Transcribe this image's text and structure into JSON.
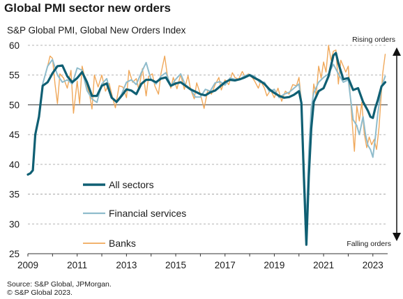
{
  "title": "Global PMI sector new orders",
  "subtitle": "S&P Global PMI, Global New Orders Index",
  "source_line1": "Source: S&P Global, JPMorgan.",
  "source_line2": "© S&P Global 2023.",
  "colors": {
    "all_sectors": "#0f5f73",
    "financial_services": "#8fbccc",
    "banks": "#f0a85a",
    "axis": "#333333",
    "grid": "#9a9a9a"
  },
  "chart_data": {
    "type": "line",
    "ylim": [
      25,
      60
    ],
    "xlim": [
      2009.0,
      2023.6
    ],
    "yticks": [
      25,
      30,
      35,
      40,
      45,
      50,
      55,
      60
    ],
    "xticks": [
      2009,
      2011,
      2013,
      2015,
      2017,
      2019,
      2021,
      2023
    ],
    "grid": "horizontal dashed",
    "legend_placement": "left-center",
    "annotations": {
      "top": "Rising orders",
      "bottom": "Falling orders"
    },
    "series": [
      {
        "name": "All sectors",
        "points": [
          [
            2009.0,
            38.3
          ],
          [
            2009.1,
            38.5
          ],
          [
            2009.2,
            39
          ],
          [
            2009.3,
            45
          ],
          [
            2009.45,
            48
          ],
          [
            2009.6,
            53.2
          ],
          [
            2009.8,
            53.8
          ],
          [
            2010.0,
            55.3
          ],
          [
            2010.2,
            56.5
          ],
          [
            2010.4,
            56.6
          ],
          [
            2010.6,
            54.8
          ],
          [
            2010.8,
            53.8
          ],
          [
            2011.0,
            54.5
          ],
          [
            2011.2,
            55.5
          ],
          [
            2011.4,
            53.8
          ],
          [
            2011.6,
            51.5
          ],
          [
            2011.8,
            51.5
          ],
          [
            2012.0,
            53.2
          ],
          [
            2012.2,
            53.6
          ],
          [
            2012.4,
            51.2
          ],
          [
            2012.6,
            50.5
          ],
          [
            2012.8,
            51.5
          ],
          [
            2013.0,
            52.6
          ],
          [
            2013.2,
            52.4
          ],
          [
            2013.4,
            51.8
          ],
          [
            2013.6,
            53.5
          ],
          [
            2013.8,
            54.2
          ],
          [
            2014.0,
            54.2
          ],
          [
            2014.2,
            53.8
          ],
          [
            2014.4,
            54.4
          ],
          [
            2014.6,
            54.6
          ],
          [
            2014.8,
            53.2
          ],
          [
            2015.0,
            53.6
          ],
          [
            2015.2,
            53.8
          ],
          [
            2015.4,
            53.2
          ],
          [
            2015.6,
            52.6
          ],
          [
            2015.8,
            52.2
          ],
          [
            2016.0,
            51.8
          ],
          [
            2016.2,
            51.6
          ],
          [
            2016.4,
            52.1
          ],
          [
            2016.6,
            52.4
          ],
          [
            2016.8,
            53.1
          ],
          [
            2017.0,
            53.8
          ],
          [
            2017.2,
            54.2
          ],
          [
            2017.4,
            54.1
          ],
          [
            2017.6,
            54.3
          ],
          [
            2017.8,
            54.6
          ],
          [
            2018.0,
            55.0
          ],
          [
            2018.2,
            54.5
          ],
          [
            2018.4,
            54.1
          ],
          [
            2018.6,
            53.5
          ],
          [
            2018.8,
            52.6
          ],
          [
            2019.0,
            52.0
          ],
          [
            2019.2,
            51.5
          ],
          [
            2019.4,
            51.2
          ],
          [
            2019.6,
            51.3
          ],
          [
            2019.8,
            51.7
          ],
          [
            2020.0,
            52.3
          ],
          [
            2020.1,
            50.3
          ],
          [
            2020.2,
            38
          ],
          [
            2020.3,
            26.5
          ],
          [
            2020.4,
            38
          ],
          [
            2020.5,
            46
          ],
          [
            2020.6,
            50.5
          ],
          [
            2020.8,
            52.3
          ],
          [
            2021.0,
            52.8
          ],
          [
            2021.2,
            54.8
          ],
          [
            2021.4,
            58.3
          ],
          [
            2021.5,
            58.7
          ],
          [
            2021.6,
            57
          ],
          [
            2021.8,
            54.3
          ],
          [
            2022.0,
            54.5
          ],
          [
            2022.2,
            52.5
          ],
          [
            2022.4,
            52.8
          ],
          [
            2022.6,
            50.5
          ],
          [
            2022.8,
            49
          ],
          [
            2022.9,
            48
          ],
          [
            2023.0,
            47.8
          ],
          [
            2023.1,
            49.5
          ],
          [
            2023.2,
            50.8
          ],
          [
            2023.35,
            53.1
          ],
          [
            2023.5,
            53.8
          ]
        ]
      },
      {
        "name": "Financial services",
        "points": [
          [
            2009.0,
            38.3
          ],
          [
            2009.1,
            38.5
          ],
          [
            2009.2,
            39
          ],
          [
            2009.3,
            45
          ],
          [
            2009.45,
            48
          ],
          [
            2009.6,
            53.5
          ],
          [
            2009.8,
            56.5
          ],
          [
            2010.0,
            57.6
          ],
          [
            2010.2,
            55
          ],
          [
            2010.4,
            53.8
          ],
          [
            2010.6,
            54.2
          ],
          [
            2010.8,
            53.5
          ],
          [
            2011.0,
            56.2
          ],
          [
            2011.2,
            55.8
          ],
          [
            2011.4,
            52.4
          ],
          [
            2011.6,
            51
          ],
          [
            2011.8,
            50.4
          ],
          [
            2012.0,
            53.5
          ],
          [
            2012.2,
            54.4
          ],
          [
            2012.4,
            51.2
          ],
          [
            2012.6,
            50.4
          ],
          [
            2012.8,
            51.8
          ],
          [
            2013.0,
            53.8
          ],
          [
            2013.2,
            54.2
          ],
          [
            2013.4,
            53.4
          ],
          [
            2013.6,
            55.4
          ],
          [
            2013.8,
            57.1
          ],
          [
            2014.0,
            54.2
          ],
          [
            2014.2,
            53.5
          ],
          [
            2014.4,
            54.8
          ],
          [
            2014.6,
            55.4
          ],
          [
            2014.8,
            53.2
          ],
          [
            2015.0,
            54.3
          ],
          [
            2015.2,
            55.2
          ],
          [
            2015.4,
            53.2
          ],
          [
            2015.6,
            52.6
          ],
          [
            2015.8,
            51.3
          ],
          [
            2016.0,
            51.3
          ],
          [
            2016.2,
            52.6
          ],
          [
            2016.4,
            52.3
          ],
          [
            2016.6,
            53.7
          ],
          [
            2016.8,
            53.9
          ],
          [
            2017.0,
            53.3
          ],
          [
            2017.2,
            54.5
          ],
          [
            2017.4,
            54.3
          ],
          [
            2017.6,
            54.2
          ],
          [
            2017.8,
            54.9
          ],
          [
            2018.0,
            55.1
          ],
          [
            2018.2,
            54.8
          ],
          [
            2018.4,
            53.8
          ],
          [
            2018.6,
            53.8
          ],
          [
            2018.8,
            52.2
          ],
          [
            2019.0,
            52.6
          ],
          [
            2019.2,
            51.2
          ],
          [
            2019.4,
            51.8
          ],
          [
            2019.6,
            52.1
          ],
          [
            2019.8,
            52.8
          ],
          [
            2020.0,
            53.5
          ],
          [
            2020.1,
            50.5
          ],
          [
            2020.2,
            40
          ],
          [
            2020.3,
            30
          ],
          [
            2020.4,
            42
          ],
          [
            2020.5,
            49.5
          ],
          [
            2020.6,
            52
          ],
          [
            2020.8,
            53.8
          ],
          [
            2021.0,
            54.6
          ],
          [
            2021.2,
            55.2
          ],
          [
            2021.4,
            56.8
          ],
          [
            2021.5,
            56
          ],
          [
            2021.6,
            55.2
          ],
          [
            2021.8,
            53.8
          ],
          [
            2022.0,
            54.2
          ],
          [
            2022.2,
            47.5
          ],
          [
            2022.35,
            46.5
          ],
          [
            2022.45,
            45
          ],
          [
            2022.6,
            48
          ],
          [
            2022.7,
            45
          ],
          [
            2022.8,
            43.2
          ],
          [
            2022.9,
            42.5
          ],
          [
            2023.0,
            41.2
          ],
          [
            2023.1,
            44.5
          ],
          [
            2023.2,
            48.6
          ],
          [
            2023.35,
            53.1
          ],
          [
            2023.5,
            54.8
          ]
        ]
      },
      {
        "name": "Banks",
        "points": [
          [
            2009.8,
            56.5
          ],
          [
            2009.9,
            58.2
          ],
          [
            2010.0,
            57.8
          ],
          [
            2010.1,
            53.5
          ],
          [
            2010.2,
            50.2
          ],
          [
            2010.3,
            55.2
          ],
          [
            2010.45,
            54.5
          ],
          [
            2010.6,
            52.8
          ],
          [
            2010.75,
            55.8
          ],
          [
            2010.85,
            48.6
          ],
          [
            2011.0,
            54
          ],
          [
            2011.1,
            50.2
          ],
          [
            2011.2,
            56.5
          ],
          [
            2011.35,
            53.8
          ],
          [
            2011.5,
            51.8
          ],
          [
            2011.6,
            49.3
          ],
          [
            2011.7,
            55
          ],
          [
            2011.85,
            53
          ],
          [
            2012.0,
            55
          ],
          [
            2012.15,
            52.3
          ],
          [
            2012.3,
            53.6
          ],
          [
            2012.45,
            51
          ],
          [
            2012.55,
            49.5
          ],
          [
            2012.7,
            53.2
          ],
          [
            2012.85,
            53
          ],
          [
            2013.0,
            51.2
          ],
          [
            2013.1,
            55.8
          ],
          [
            2013.25,
            53.8
          ],
          [
            2013.4,
            54.4
          ],
          [
            2013.5,
            52.6
          ],
          [
            2013.65,
            56.1
          ],
          [
            2013.8,
            51.5
          ],
          [
            2013.9,
            54.8
          ],
          [
            2014.05,
            55.2
          ],
          [
            2014.15,
            53.2
          ],
          [
            2014.3,
            51.8
          ],
          [
            2014.4,
            55.2
          ],
          [
            2014.55,
            58.2
          ],
          [
            2014.65,
            55.2
          ],
          [
            2014.8,
            52.8
          ],
          [
            2014.9,
            54.6
          ],
          [
            2015.05,
            52.7
          ],
          [
            2015.2,
            55.1
          ],
          [
            2015.35,
            52.6
          ],
          [
            2015.5,
            54.9
          ],
          [
            2015.6,
            52.6
          ],
          [
            2015.75,
            51
          ],
          [
            2015.85,
            53.7
          ],
          [
            2016.0,
            51.8
          ],
          [
            2016.15,
            49.4
          ],
          [
            2016.3,
            52.5
          ],
          [
            2016.45,
            51.8
          ],
          [
            2016.6,
            53.4
          ],
          [
            2016.75,
            54.6
          ],
          [
            2016.85,
            52.5
          ],
          [
            2017.0,
            54.2
          ],
          [
            2017.15,
            53.4
          ],
          [
            2017.3,
            55.4
          ],
          [
            2017.4,
            54.6
          ],
          [
            2017.55,
            54.3
          ],
          [
            2017.7,
            55.6
          ],
          [
            2017.8,
            54.8
          ],
          [
            2017.95,
            55.2
          ],
          [
            2018.1,
            54.6
          ],
          [
            2018.2,
            54
          ],
          [
            2018.35,
            52.8
          ],
          [
            2018.45,
            54
          ],
          [
            2018.6,
            52.8
          ],
          [
            2018.7,
            51.5
          ],
          [
            2018.85,
            52.5
          ],
          [
            2019.0,
            51.2
          ],
          [
            2019.15,
            52.8
          ],
          [
            2019.3,
            50.6
          ],
          [
            2019.45,
            52.3
          ],
          [
            2019.6,
            51.8
          ],
          [
            2019.75,
            53.4
          ],
          [
            2019.9,
            53.2
          ],
          [
            2020.0,
            54.6
          ],
          [
            2020.1,
            50.8
          ],
          [
            2020.2,
            41
          ],
          [
            2020.3,
            27.5
          ],
          [
            2020.4,
            40
          ],
          [
            2020.5,
            48
          ],
          [
            2020.6,
            53.5
          ],
          [
            2020.7,
            51.5
          ],
          [
            2020.8,
            56.5
          ],
          [
            2020.9,
            54.5
          ],
          [
            2021.0,
            57.2
          ],
          [
            2021.1,
            55.5
          ],
          [
            2021.2,
            60
          ],
          [
            2021.3,
            57.5
          ],
          [
            2021.4,
            59
          ],
          [
            2021.5,
            59.2
          ],
          [
            2021.6,
            53.5
          ],
          [
            2021.7,
            57.5
          ],
          [
            2021.8,
            56.5
          ],
          [
            2021.9,
            55.5
          ],
          [
            2022.0,
            56.5
          ],
          [
            2022.1,
            50.5
          ],
          [
            2022.15,
            47.5
          ],
          [
            2022.25,
            42.2
          ],
          [
            2022.35,
            49.8
          ],
          [
            2022.45,
            47.3
          ],
          [
            2022.55,
            50.4
          ],
          [
            2022.65,
            45.2
          ],
          [
            2022.75,
            42.8
          ],
          [
            2022.85,
            44.6
          ],
          [
            2022.95,
            43.3
          ],
          [
            2023.05,
            44.2
          ],
          [
            2023.15,
            42.5
          ],
          [
            2023.25,
            46.2
          ],
          [
            2023.4,
            55.3
          ],
          [
            2023.5,
            58.5
          ]
        ]
      }
    ]
  }
}
